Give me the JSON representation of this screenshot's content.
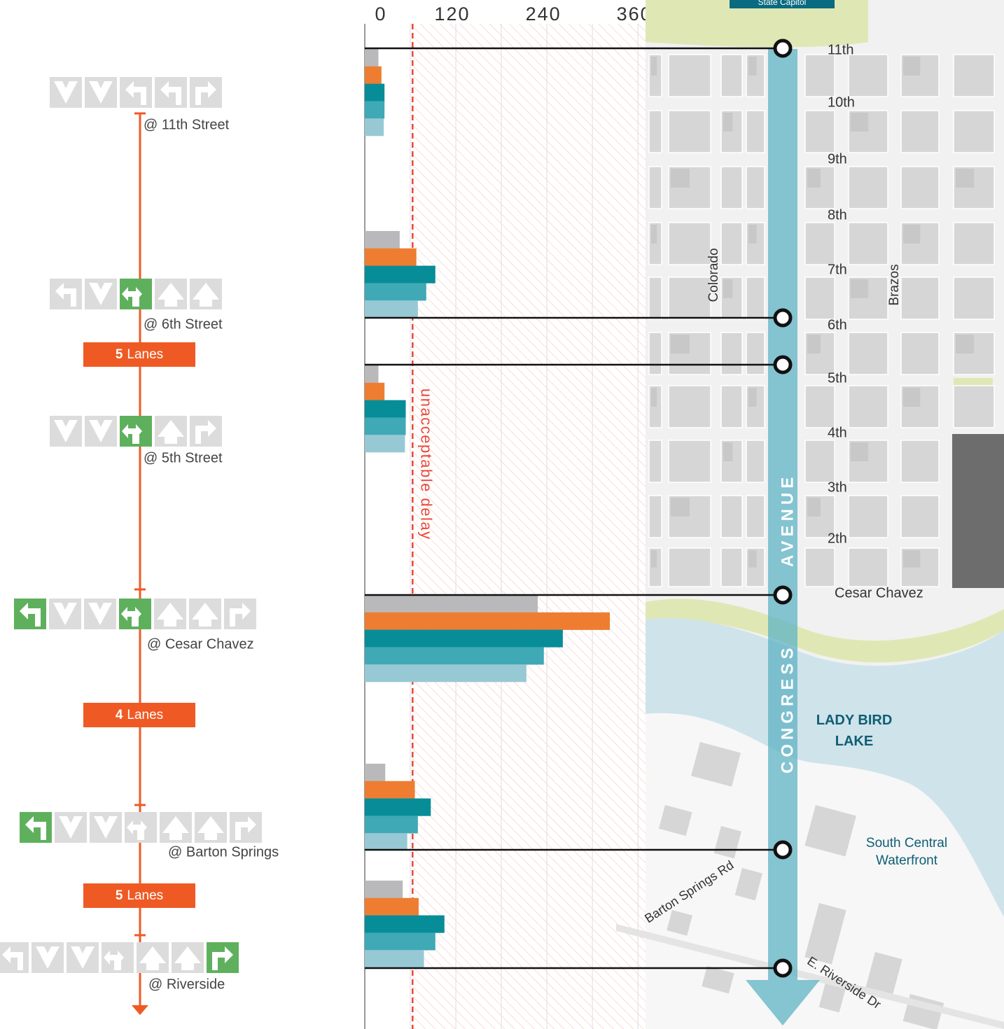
{
  "chart_data": {
    "type": "bar",
    "orientation": "horizontal",
    "categories": [
      "@ 11th Street",
      "@ 6th Street",
      "@ 5th Street",
      "@ Cesar Chavez",
      "@ Barton Springs",
      "@ Riverside"
    ],
    "series": [
      {
        "color": "#b9b9bb",
        "values": [
          18,
          46,
          18,
          228,
          27,
          50
        ]
      },
      {
        "color": "#ee7d31",
        "values": [
          22,
          68,
          26,
          323,
          66,
          71
        ]
      },
      {
        "color": "#078d98",
        "values": [
          26,
          93,
          54,
          261,
          87,
          105
        ]
      },
      {
        "color": "#3fa9b5",
        "values": [
          26,
          81,
          54,
          236,
          70,
          93
        ]
      },
      {
        "color": "#97c9d4",
        "values": [
          25,
          70,
          53,
          213,
          56,
          78
        ]
      }
    ],
    "xlim": [
      0,
      370
    ],
    "xticks": [
      0,
      120,
      240,
      360
    ],
    "xminorticks": [
      60,
      180,
      300
    ],
    "grid": true,
    "threshold": {
      "value": 63,
      "label": "unacceptable delay",
      "color": "#e8483a"
    }
  },
  "segments": [
    {
      "number": 5,
      "unit": "Lanes"
    },
    {
      "number": 4,
      "unit": "Lanes"
    },
    {
      "number": 5,
      "unit": "Lanes"
    }
  ],
  "map": {
    "title": "State Capitol",
    "streets": [
      "11th",
      "10th",
      "9th",
      "8th",
      "7th",
      "6th",
      "5th",
      "4th",
      "3th",
      "2th",
      "Cesar Chavez"
    ],
    "cross_streets": [
      "Colorado",
      "Brazos"
    ],
    "avenue": [
      "CONGRESS",
      "AVENUE"
    ],
    "lake": "LADY BIRD LAKE",
    "district": "South Central Waterfront",
    "roads": [
      "Barton Springs Rd",
      "E. Riverside Dr"
    ]
  }
}
